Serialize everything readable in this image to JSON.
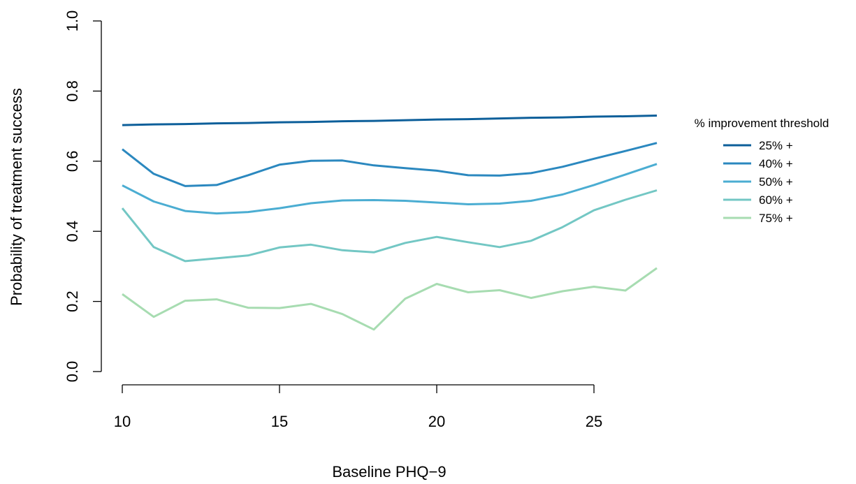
{
  "chart_data": {
    "type": "line",
    "xlabel": "Baseline PHQ−9",
    "ylabel": "Probability of treatment success",
    "xlim": [
      10,
      27
    ],
    "ylim": [
      0,
      1
    ],
    "x_ticks": [
      10,
      15,
      20,
      25
    ],
    "y_ticks": [
      "0.0",
      "0.2",
      "0.4",
      "0.6",
      "0.8",
      "1.0"
    ],
    "grid": false,
    "legend_title": "% improvement threshold",
    "legend_position": "right",
    "x": [
      10,
      11,
      12,
      13,
      14,
      15,
      16,
      17,
      18,
      19,
      20,
      21,
      22,
      23,
      24,
      25,
      26,
      27
    ],
    "series": [
      {
        "name": "25% +",
        "color": "#0d5f9a",
        "values": [
          0.703,
          0.705,
          0.706,
          0.708,
          0.709,
          0.711,
          0.712,
          0.714,
          0.715,
          0.717,
          0.719,
          0.72,
          0.722,
          0.724,
          0.725,
          0.727,
          0.728,
          0.73
        ]
      },
      {
        "name": "40% +",
        "color": "#2b88bf",
        "values": [
          0.634,
          0.564,
          0.529,
          0.532,
          0.56,
          0.59,
          0.601,
          0.602,
          0.588,
          0.58,
          0.573,
          0.56,
          0.559,
          0.566,
          0.584,
          0.607,
          0.629,
          0.652
        ]
      },
      {
        "name": "50% +",
        "color": "#4badd2",
        "values": [
          0.531,
          0.485,
          0.458,
          0.451,
          0.455,
          0.466,
          0.48,
          0.488,
          0.489,
          0.487,
          0.482,
          0.477,
          0.479,
          0.487,
          0.505,
          0.532,
          0.562,
          0.592
        ]
      },
      {
        "name": "60% +",
        "color": "#73c7c4",
        "values": [
          0.466,
          0.355,
          0.315,
          0.323,
          0.331,
          0.354,
          0.362,
          0.346,
          0.34,
          0.367,
          0.384,
          0.369,
          0.355,
          0.373,
          0.412,
          0.46,
          0.49,
          0.517
        ]
      },
      {
        "name": "75% +",
        "color": "#a7dcb1",
        "values": [
          0.221,
          0.156,
          0.202,
          0.206,
          0.182,
          0.181,
          0.193,
          0.164,
          0.12,
          0.208,
          0.25,
          0.226,
          0.232,
          0.21,
          0.229,
          0.242,
          0.231,
          0.295
        ]
      }
    ]
  }
}
